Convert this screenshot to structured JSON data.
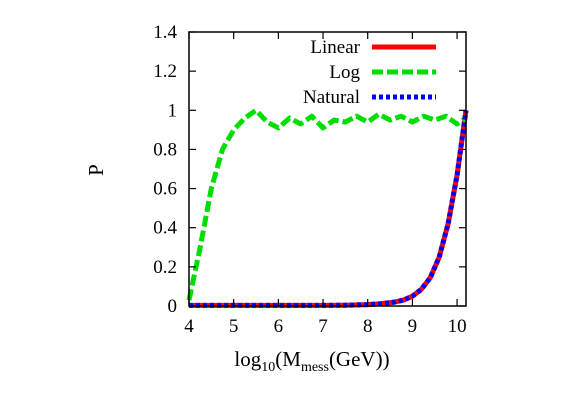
{
  "chart_data": {
    "type": "line",
    "title": "",
    "xlabel": {
      "prefix": "log",
      "prefix_sub": "10",
      "open": "(M",
      "sub": "mess",
      "close": "(GeV))"
    },
    "ylabel": "P",
    "xlim": [
      4,
      10.2
    ],
    "ylim": [
      0,
      1.4
    ],
    "xticks": [
      4,
      5,
      6,
      7,
      8,
      9,
      10
    ],
    "yticks": [
      0,
      0.2,
      0.4,
      0.6,
      0.8,
      1,
      1.2,
      1.4
    ],
    "xtick_labels": [
      "4",
      "5",
      "6",
      "7",
      "8",
      "9",
      "10"
    ],
    "ytick_labels": [
      "0",
      "0.2",
      "0.4",
      "0.6",
      "0.8",
      "1",
      "1.2",
      "1.4"
    ],
    "grid": false,
    "legend_position": "top-right",
    "series": [
      {
        "name": "Linear",
        "color": "#ff0000",
        "style": "solid",
        "x": [
          4.0,
          4.5,
          5.0,
          5.5,
          6.0,
          6.5,
          7.0,
          7.5,
          8.0,
          8.3,
          8.6,
          8.8,
          9.0,
          9.2,
          9.4,
          9.6,
          9.8,
          10.0,
          10.2
        ],
        "y": [
          0.003,
          0.003,
          0.003,
          0.003,
          0.003,
          0.003,
          0.003,
          0.004,
          0.007,
          0.012,
          0.02,
          0.03,
          0.05,
          0.085,
          0.145,
          0.25,
          0.42,
          0.67,
          1.0
        ]
      },
      {
        "name": "Log",
        "color": "#00dd00",
        "style": "dashed",
        "x": [
          4.0,
          4.25,
          4.5,
          4.75,
          5.0,
          5.25,
          5.5,
          5.75,
          6.0,
          6.25,
          6.5,
          6.75,
          7.0,
          7.25,
          7.5,
          7.75,
          8.0,
          8.25,
          8.5,
          8.75,
          9.0,
          9.25,
          9.5,
          9.75,
          10.0,
          10.2
        ],
        "y": [
          0.03,
          0.3,
          0.6,
          0.8,
          0.9,
          0.96,
          1.0,
          0.94,
          0.91,
          0.96,
          0.93,
          0.97,
          0.91,
          0.95,
          0.94,
          0.97,
          0.94,
          0.98,
          0.95,
          0.97,
          0.94,
          0.97,
          0.95,
          0.97,
          0.93,
          0.96
        ]
      },
      {
        "name": "Natural",
        "color": "#0000ff",
        "style": "dotted",
        "x": [
          4.0,
          4.5,
          5.0,
          5.5,
          6.0,
          6.5,
          7.0,
          7.5,
          8.0,
          8.3,
          8.6,
          8.8,
          9.0,
          9.2,
          9.4,
          9.6,
          9.8,
          10.0,
          10.2
        ],
        "y": [
          0.003,
          0.003,
          0.003,
          0.003,
          0.003,
          0.003,
          0.003,
          0.004,
          0.007,
          0.012,
          0.02,
          0.03,
          0.05,
          0.085,
          0.145,
          0.25,
          0.42,
          0.67,
          1.0
        ]
      }
    ]
  }
}
